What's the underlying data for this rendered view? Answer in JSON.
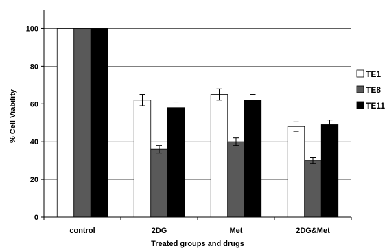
{
  "chart_data": {
    "type": "bar",
    "title": "",
    "xlabel": "Treated groups and drugs",
    "ylabel": "% Cell Viability",
    "ylim": [
      0,
      110
    ],
    "yticks": [
      0,
      20,
      40,
      60,
      80,
      100
    ],
    "grid": true,
    "legend_position": "right",
    "categories": [
      "control",
      "2DG",
      "Met",
      "2DG&Met"
    ],
    "series": [
      {
        "name": "TE1",
        "color": "#ffffff",
        "values": [
          100,
          62,
          65,
          48
        ],
        "errors": [
          0,
          3,
          3,
          2.5
        ]
      },
      {
        "name": "TE8",
        "color": "#595959",
        "values": [
          100,
          36,
          40,
          30
        ],
        "errors": [
          0,
          2,
          2,
          1.5
        ]
      },
      {
        "name": "TE11",
        "color": "#000000",
        "values": [
          100,
          58,
          62,
          49
        ],
        "errors": [
          0,
          3,
          3,
          2.5
        ]
      }
    ]
  }
}
